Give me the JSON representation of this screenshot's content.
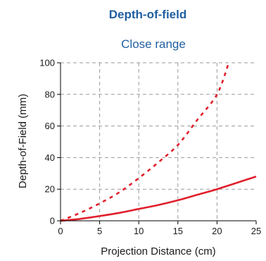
{
  "chart_data": {
    "type": "line",
    "title": "Depth-of-field",
    "subtitle": "Close range",
    "xlabel": "Projection Distance (cm)",
    "ylabel": "Depth-of-Field (mm)",
    "xlim": [
      0,
      25
    ],
    "ylim": [
      0,
      100
    ],
    "xticks": [
      0,
      5,
      10,
      15,
      20,
      25
    ],
    "yticks": [
      0,
      20,
      40,
      60,
      80,
      100
    ],
    "grid": true,
    "series": [
      {
        "style": "dashed",
        "color": "#e0202c",
        "x": [
          0,
          2.5,
          5,
          7.5,
          10,
          12.5,
          15,
          17.5,
          20,
          21.5
        ],
        "y": [
          0,
          5,
          11,
          18,
          27,
          37,
          48,
          64,
          80,
          100
        ]
      },
      {
        "style": "solid",
        "color": "#e0202c",
        "x": [
          0,
          2.5,
          5,
          7.5,
          10,
          12.5,
          15,
          17.5,
          20,
          22.5,
          25
        ],
        "y": [
          0,
          1.2,
          3,
          5,
          7.5,
          10,
          13,
          16.5,
          20,
          24,
          28
        ]
      }
    ]
  }
}
